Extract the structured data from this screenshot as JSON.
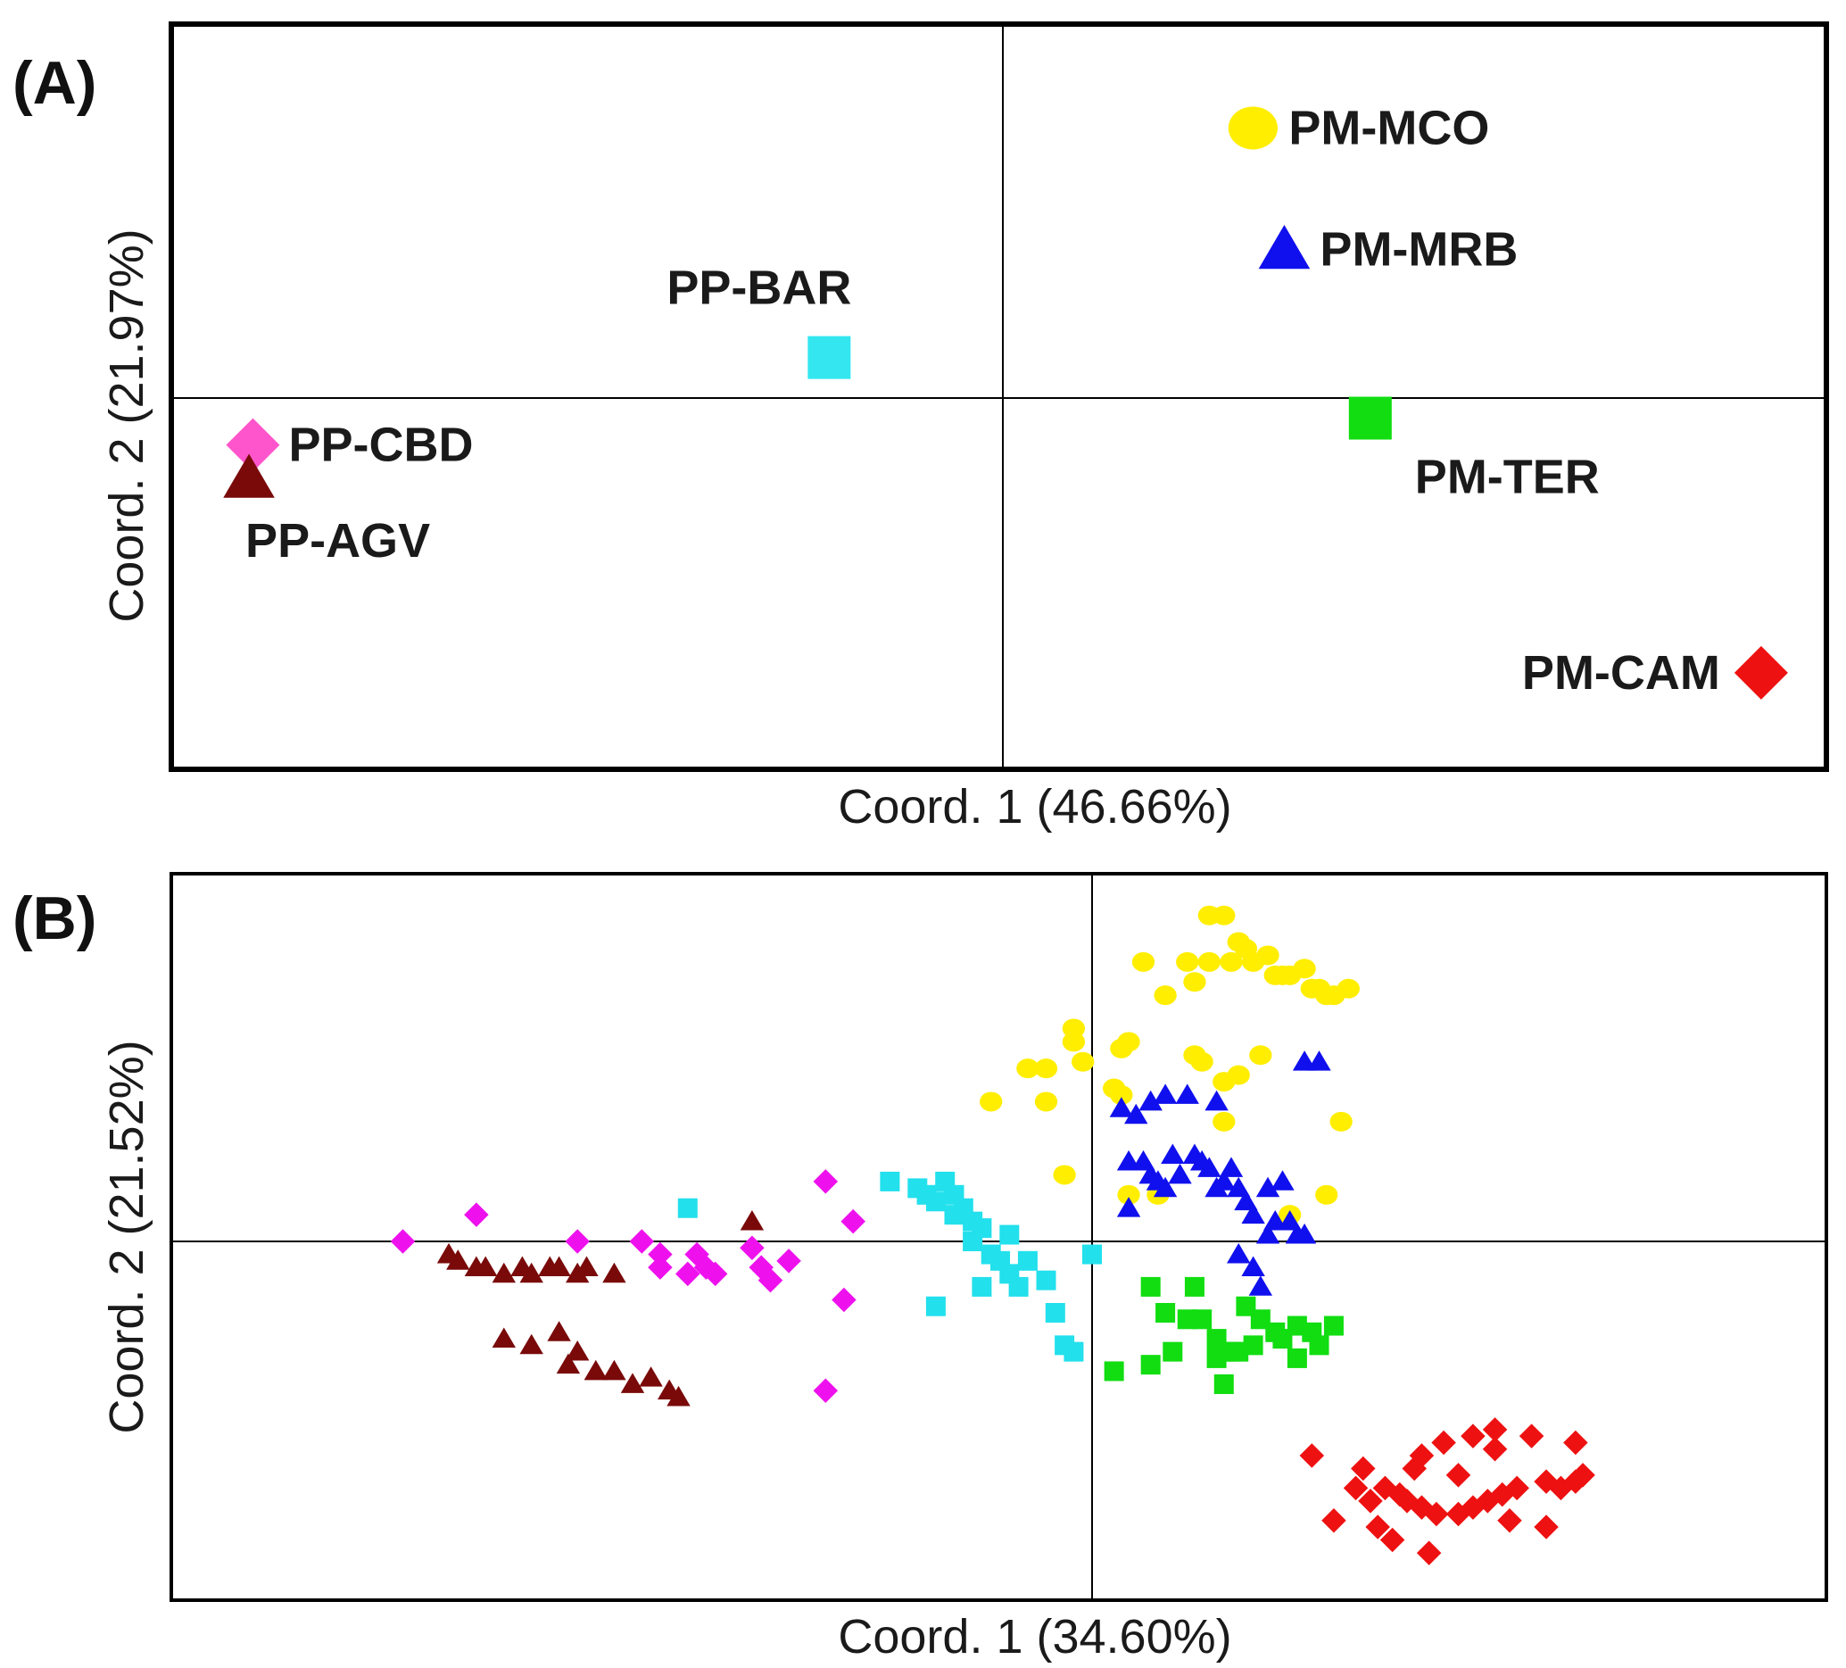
{
  "chart_data": [
    {
      "panel": "(A)",
      "type": "scatter",
      "xlabel": "Coord. 1 (46.66%)",
      "ylabel": "Coord. 2 (21.97%)",
      "xlim": [
        -1.05,
        1.05
      ],
      "ylim": [
        -0.55,
        0.55
      ],
      "grid": false,
      "reference_lines": {
        "x": 0,
        "y": 0
      },
      "points": [
        {
          "label": "PP-CBD",
          "x": -0.95,
          "y": -0.07,
          "marker": "diamond",
          "color": "#ff55cc",
          "label_pos": "right"
        },
        {
          "label": "PP-AGV",
          "x": -0.955,
          "y": -0.12,
          "marker": "triangle",
          "color": "#7a0a0a",
          "label_pos": "below-right"
        },
        {
          "label": "PP-BAR",
          "x": -0.22,
          "y": 0.06,
          "marker": "square",
          "color": "#33e6f0",
          "label_pos": "above-left"
        },
        {
          "label": "PM-MCO",
          "x": 0.32,
          "y": 0.4,
          "marker": "circle",
          "color": "#ffee00",
          "label_pos": "right"
        },
        {
          "label": "PM-MRB",
          "x": 0.36,
          "y": 0.22,
          "marker": "triangle",
          "color": "#1010ee",
          "label_pos": "right"
        },
        {
          "label": "PM-TER",
          "x": 0.47,
          "y": -0.03,
          "marker": "square",
          "color": "#11dd11",
          "label_pos": "below-right"
        },
        {
          "label": "PM-CAM",
          "x": 0.97,
          "y": -0.41,
          "marker": "diamond",
          "color": "#ee1111",
          "label_pos": "left"
        }
      ]
    },
    {
      "panel": "(B)",
      "type": "scatter",
      "xlabel": "Coord. 1 (34.60%)",
      "ylabel": "Coord. 2 (21.52%)",
      "xlim": [
        -1.0,
        1.0
      ],
      "ylim": [
        -0.55,
        0.55
      ],
      "grid": false,
      "reference_lines": {
        "x": 0,
        "y": 0
      },
      "series": [
        {
          "name": "PP-CBD",
          "marker": "diamond",
          "color": "#ee11ee",
          "points": [
            [
              -0.75,
              0.0
            ],
            [
              -0.67,
              0.04
            ],
            [
              -0.56,
              0.0
            ],
            [
              -0.49,
              0.0
            ],
            [
              -0.47,
              -0.02
            ],
            [
              -0.44,
              -0.05
            ],
            [
              -0.42,
              -0.04
            ],
            [
              -0.41,
              -0.05
            ],
            [
              -0.37,
              -0.01
            ],
            [
              -0.36,
              -0.04
            ],
            [
              -0.35,
              -0.06
            ],
            [
              -0.47,
              -0.04
            ],
            [
              -0.43,
              -0.02
            ],
            [
              -0.33,
              -0.03
            ],
            [
              -0.29,
              0.09
            ],
            [
              -0.26,
              0.03
            ],
            [
              -0.27,
              -0.09
            ],
            [
              -0.29,
              -0.23
            ]
          ]
        },
        {
          "name": "PP-AGV",
          "marker": "triangle",
          "color": "#7a0a0a",
          "points": [
            [
              -0.7,
              -0.02
            ],
            [
              -0.69,
              -0.03
            ],
            [
              -0.67,
              -0.04
            ],
            [
              -0.66,
              -0.04
            ],
            [
              -0.64,
              -0.05
            ],
            [
              -0.62,
              -0.04
            ],
            [
              -0.61,
              -0.05
            ],
            [
              -0.59,
              -0.04
            ],
            [
              -0.58,
              -0.04
            ],
            [
              -0.56,
              -0.05
            ],
            [
              -0.55,
              -0.04
            ],
            [
              -0.52,
              -0.05
            ],
            [
              -0.64,
              -0.15
            ],
            [
              -0.61,
              -0.16
            ],
            [
              -0.58,
              -0.14
            ],
            [
              -0.56,
              -0.17
            ],
            [
              -0.57,
              -0.19
            ],
            [
              -0.54,
              -0.2
            ],
            [
              -0.52,
              -0.2
            ],
            [
              -0.48,
              -0.21
            ],
            [
              -0.46,
              -0.23
            ],
            [
              -0.45,
              -0.24
            ],
            [
              -0.5,
              -0.22
            ],
            [
              -0.37,
              0.03
            ]
          ]
        },
        {
          "name": "PP-BAR",
          "marker": "square",
          "color": "#22e0ec",
          "points": [
            [
              -0.44,
              0.05
            ],
            [
              -0.22,
              0.09
            ],
            [
              -0.19,
              0.08
            ],
            [
              -0.18,
              0.07
            ],
            [
              -0.17,
              0.06
            ],
            [
              -0.16,
              0.09
            ],
            [
              -0.15,
              0.07
            ],
            [
              -0.15,
              0.04
            ],
            [
              -0.14,
              0.05
            ],
            [
              -0.13,
              0.03
            ],
            [
              -0.12,
              0.02
            ],
            [
              -0.13,
              0.0
            ],
            [
              -0.11,
              -0.02
            ],
            [
              -0.1,
              -0.03
            ],
            [
              -0.09,
              -0.05
            ],
            [
              -0.08,
              -0.07
            ],
            [
              -0.09,
              0.01
            ],
            [
              -0.07,
              -0.03
            ],
            [
              -0.05,
              -0.06
            ],
            [
              -0.04,
              -0.11
            ],
            [
              -0.03,
              -0.16
            ],
            [
              -0.02,
              -0.17
            ],
            [
              -0.17,
              -0.1
            ],
            [
              -0.12,
              -0.07
            ],
            [
              0.0,
              -0.02
            ]
          ]
        },
        {
          "name": "PM-MCO",
          "marker": "circle",
          "color": "#ffee00",
          "points": [
            [
              0.07,
              0.42
            ],
            [
              0.13,
              0.42
            ],
            [
              0.14,
              0.39
            ],
            [
              0.16,
              0.42
            ],
            [
              0.16,
              0.49
            ],
            [
              0.18,
              0.49
            ],
            [
              0.19,
              0.42
            ],
            [
              0.2,
              0.45
            ],
            [
              0.21,
              0.44
            ],
            [
              0.22,
              0.42
            ],
            [
              0.24,
              0.43
            ],
            [
              0.25,
              0.4
            ],
            [
              0.26,
              0.4
            ],
            [
              0.27,
              0.4
            ],
            [
              0.29,
              0.41
            ],
            [
              0.3,
              0.38
            ],
            [
              0.31,
              0.38
            ],
            [
              0.32,
              0.37
            ],
            [
              0.33,
              0.37
            ],
            [
              0.35,
              0.38
            ],
            [
              -0.02,
              0.32
            ],
            [
              -0.02,
              0.3
            ],
            [
              -0.01,
              0.27
            ],
            [
              0.04,
              0.29
            ],
            [
              0.05,
              0.3
            ],
            [
              0.1,
              0.37
            ],
            [
              0.14,
              0.28
            ],
            [
              0.15,
              0.27
            ],
            [
              0.18,
              0.24
            ],
            [
              0.2,
              0.25
            ],
            [
              0.23,
              0.28
            ],
            [
              0.18,
              0.18
            ],
            [
              0.03,
              0.23
            ],
            [
              0.04,
              0.22
            ],
            [
              -0.05,
              0.21
            ],
            [
              -0.05,
              0.26
            ],
            [
              0.05,
              0.07
            ],
            [
              0.09,
              0.07
            ],
            [
              0.34,
              0.18
            ],
            [
              0.32,
              0.07
            ],
            [
              0.27,
              0.04
            ],
            [
              -0.11,
              0.21
            ],
            [
              -0.07,
              0.26
            ],
            [
              -0.03,
              0.1
            ]
          ]
        },
        {
          "name": "PM-MRB",
          "marker": "triangle",
          "color": "#1010ee",
          "points": [
            [
              0.29,
              0.27
            ],
            [
              0.31,
              0.27
            ],
            [
              0.17,
              0.21
            ],
            [
              0.13,
              0.22
            ],
            [
              0.1,
              0.22
            ],
            [
              0.08,
              0.21
            ],
            [
              0.06,
              0.19
            ],
            [
              0.04,
              0.2
            ],
            [
              0.11,
              0.13
            ],
            [
              0.05,
              0.12
            ],
            [
              0.07,
              0.12
            ],
            [
              0.08,
              0.1
            ],
            [
              0.09,
              0.09
            ],
            [
              0.1,
              0.08
            ],
            [
              0.14,
              0.13
            ],
            [
              0.16,
              0.11
            ],
            [
              0.17,
              0.08
            ],
            [
              0.18,
              0.09
            ],
            [
              0.19,
              0.11
            ],
            [
              0.2,
              0.08
            ],
            [
              0.21,
              0.06
            ],
            [
              0.22,
              0.04
            ],
            [
              0.24,
              0.08
            ],
            [
              0.26,
              0.09
            ],
            [
              0.25,
              0.03
            ],
            [
              0.27,
              0.03
            ],
            [
              0.28,
              0.01
            ],
            [
              0.29,
              0.01
            ],
            [
              0.15,
              0.12
            ],
            [
              0.2,
              -0.02
            ],
            [
              0.22,
              -0.04
            ],
            [
              0.23,
              -0.07
            ],
            [
              0.24,
              0.01
            ],
            [
              0.12,
              0.1
            ],
            [
              0.05,
              0.05
            ]
          ]
        },
        {
          "name": "PM-TER",
          "marker": "square",
          "color": "#11dd11",
          "points": [
            [
              0.08,
              -0.07
            ],
            [
              0.1,
              -0.11
            ],
            [
              0.13,
              -0.12
            ],
            [
              0.15,
              -0.12
            ],
            [
              0.17,
              -0.15
            ],
            [
              0.18,
              -0.17
            ],
            [
              0.17,
              -0.18
            ],
            [
              0.19,
              -0.17
            ],
            [
              0.2,
              -0.17
            ],
            [
              0.22,
              -0.16
            ],
            [
              0.23,
              -0.12
            ],
            [
              0.25,
              -0.14
            ],
            [
              0.26,
              -0.15
            ],
            [
              0.28,
              -0.13
            ],
            [
              0.28,
              -0.18
            ],
            [
              0.3,
              -0.14
            ],
            [
              0.31,
              -0.16
            ],
            [
              0.33,
              -0.13
            ],
            [
              0.08,
              -0.19
            ],
            [
              0.11,
              -0.17
            ],
            [
              0.03,
              -0.2
            ],
            [
              0.18,
              -0.22
            ],
            [
              0.21,
              -0.1
            ],
            [
              0.14,
              -0.07
            ]
          ]
        },
        {
          "name": "PM-CAM",
          "marker": "diamond",
          "color": "#ee1111",
          "points": [
            [
              0.3,
              -0.33
            ],
            [
              0.36,
              -0.38
            ],
            [
              0.4,
              -0.38
            ],
            [
              0.42,
              -0.39
            ],
            [
              0.43,
              -0.4
            ],
            [
              0.45,
              -0.41
            ],
            [
              0.47,
              -0.42
            ],
            [
              0.5,
              -0.42
            ],
            [
              0.52,
              -0.41
            ],
            [
              0.54,
              -0.4
            ],
            [
              0.56,
              -0.39
            ],
            [
              0.58,
              -0.38
            ],
            [
              0.62,
              -0.37
            ],
            [
              0.64,
              -0.38
            ],
            [
              0.66,
              -0.37
            ],
            [
              0.67,
              -0.36
            ],
            [
              0.45,
              -0.33
            ],
            [
              0.48,
              -0.31
            ],
            [
              0.52,
              -0.3
            ],
            [
              0.55,
              -0.32
            ],
            [
              0.6,
              -0.3
            ],
            [
              0.66,
              -0.31
            ],
            [
              0.55,
              -0.29
            ],
            [
              0.41,
              -0.46
            ],
            [
              0.46,
              -0.48
            ],
            [
              0.39,
              -0.44
            ],
            [
              0.33,
              -0.43
            ],
            [
              0.38,
              -0.4
            ],
            [
              0.57,
              -0.43
            ],
            [
              0.62,
              -0.44
            ],
            [
              0.37,
              -0.35
            ],
            [
              0.5,
              -0.36
            ],
            [
              0.44,
              -0.35
            ]
          ]
        }
      ]
    }
  ]
}
